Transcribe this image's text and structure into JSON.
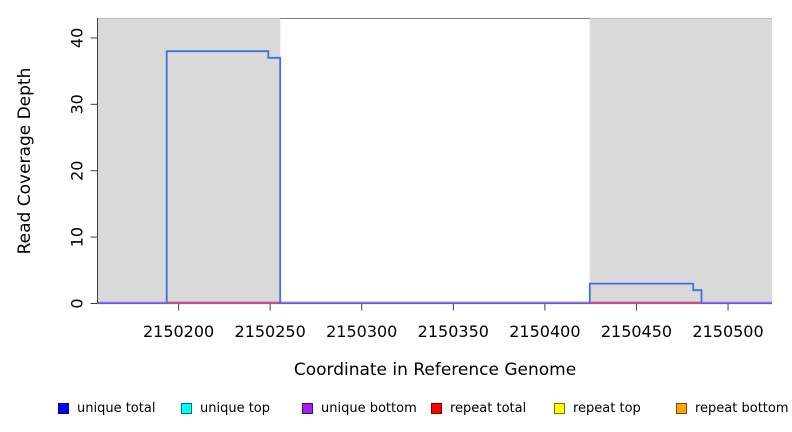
{
  "chart_data": {
    "type": "line",
    "title": "",
    "xlabel": "Coordinate in Reference Genome",
    "ylabel": "Read Coverage Depth",
    "xlim": [
      2150156,
      2150524
    ],
    "ylim": [
      0,
      43
    ],
    "x_ticks": [
      2150200,
      2150250,
      2150300,
      2150350,
      2150400,
      2150450,
      2150500
    ],
    "y_ticks": [
      0,
      10,
      20,
      30,
      40
    ],
    "grid": false,
    "legend_position": "bottom",
    "colors": {
      "plot_background": "#ffffff",
      "shaded_region_fill": "#d9d9d9",
      "shaded_region_top_edge": "#bdbdbd",
      "axis": "#3f3f3f",
      "box_top": "#7d7d7d",
      "unique_total_line": "#4170e4",
      "unique_bottom_line": "#7a50d2",
      "baseline_highlight": "#a4a4f2",
      "repeat_total_line": "#d85070"
    },
    "shaded_regions": [
      {
        "start": 2150156,
        "end": 2150255.5
      },
      {
        "start": 2150424.5,
        "end": 2150524
      }
    ],
    "series": [
      {
        "name": "unique total",
        "color": "#0000FF",
        "steps": [
          [
            2150156,
            0
          ],
          [
            2150193.5,
            0
          ],
          [
            2150193.5,
            38
          ],
          [
            2150249,
            38
          ],
          [
            2150249,
            37
          ],
          [
            2150255.5,
            37
          ],
          [
            2150255.5,
            0
          ],
          [
            2150424.5,
            0
          ],
          [
            2150424.5,
            3
          ],
          [
            2150481,
            3
          ],
          [
            2150481,
            2
          ],
          [
            2150485.5,
            2
          ],
          [
            2150485.5,
            0
          ],
          [
            2150524,
            0
          ]
        ]
      },
      {
        "name": "unique top",
        "color": "#00FFFF",
        "constant_value": 0
      },
      {
        "name": "unique bottom",
        "color": "#A020F0",
        "constant_value": 0
      },
      {
        "name": "repeat total",
        "color": "#FF0000",
        "constant_value": 0
      },
      {
        "name": "repeat top",
        "color": "#FFFF00",
        "constant_value": 0
      },
      {
        "name": "repeat bottom",
        "color": "#FFA500",
        "constant_value": 0
      }
    ],
    "overlays": [
      {
        "kind": "hline",
        "name": "baseline-highlight",
        "y": 0,
        "x1": 2150156,
        "x2": 2150524,
        "color": "#a4a4f2",
        "width": 1.3,
        "dy": -1.4
      },
      {
        "kind": "hline",
        "name": "baseline-unique-bottom",
        "y": 0,
        "x1": 2150156,
        "x2": 2150524,
        "color": "#7a50d2",
        "width": 1.7,
        "dy": -0.2
      },
      {
        "kind": "hline",
        "name": "repeat-total-left-segment",
        "y": 0,
        "x1": 2150193.5,
        "x2": 2150255.5,
        "color": "#d85070",
        "width": 1.8,
        "dy": -0.8
      },
      {
        "kind": "hline",
        "name": "repeat-total-right-segment",
        "y": 0,
        "x1": 2150424.5,
        "x2": 2150485.5,
        "color": "#d85070",
        "width": 1.8,
        "dy": -0.8
      },
      {
        "kind": "steps",
        "name": "unique-total-left-block",
        "color": "#4170e4",
        "width": 1.8,
        "points": [
          [
            2150193.5,
            0
          ],
          [
            2150193.5,
            38
          ],
          [
            2150249,
            38
          ],
          [
            2150249,
            37
          ],
          [
            2150255.5,
            37
          ],
          [
            2150255.5,
            0
          ]
        ]
      },
      {
        "kind": "steps",
        "name": "unique-total-right-block",
        "color": "#4170e4",
        "width": 1.8,
        "points": [
          [
            2150424.5,
            0
          ],
          [
            2150424.5,
            3
          ],
          [
            2150481,
            3
          ],
          [
            2150481,
            2
          ],
          [
            2150485.5,
            2
          ],
          [
            2150485.5,
            0
          ]
        ]
      },
      {
        "kind": "hline",
        "name": "plot-box-top",
        "y": 43,
        "x1": 2150255.5,
        "x2": 2150424.5,
        "color": "#7d7d7d",
        "width": 1,
        "dy": 0.5
      }
    ]
  }
}
